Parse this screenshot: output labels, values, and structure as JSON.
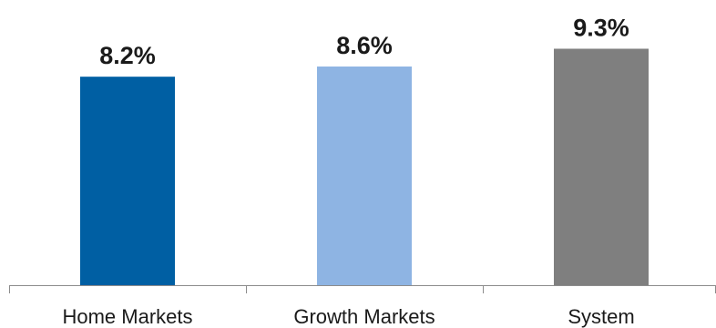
{
  "chart_data": {
    "type": "bar",
    "categories": [
      "Home Markets",
      "Growth Markets",
      "System"
    ],
    "values": [
      8.2,
      8.6,
      9.3
    ],
    "value_labels": [
      "8.2%",
      "8.6%",
      "9.3%"
    ],
    "colors": [
      "#005fa3",
      "#8eb4e3",
      "#7f7f7f"
    ],
    "title": "",
    "xlabel": "",
    "ylabel": "",
    "ylim": [
      0,
      10.5
    ],
    "grid": false,
    "legend": "none"
  }
}
